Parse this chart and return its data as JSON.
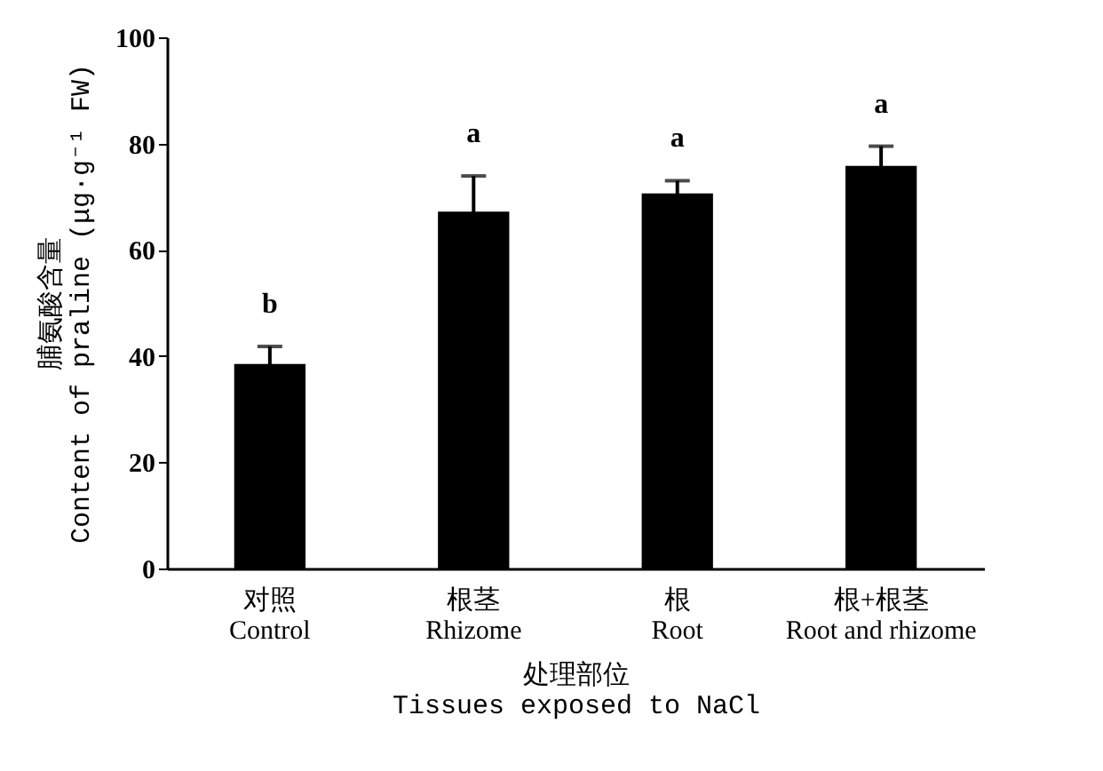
{
  "chart_data": {
    "type": "bar",
    "categories": [
      "对照\nControl",
      "根茎\nRhizome",
      "根\nRoot",
      "根+根茎\nRoot and rhizome"
    ],
    "values": [
      38.5,
      67.2,
      70.6,
      75.8
    ],
    "errors": [
      3.3,
      6.7,
      2.4,
      3.7
    ],
    "color": "#000000",
    "xlabel": "处理部位\nTissues exposed to NaCl",
    "ylabel": "脯氨酸含量\nContent of praline (μg·g⁻¹ FW)",
    "ylim": [
      0,
      100
    ],
    "yticks": [
      0,
      20,
      40,
      60,
      80,
      100
    ],
    "grid": false,
    "annotations": [
      "b",
      "a",
      "a",
      "a"
    ]
  }
}
